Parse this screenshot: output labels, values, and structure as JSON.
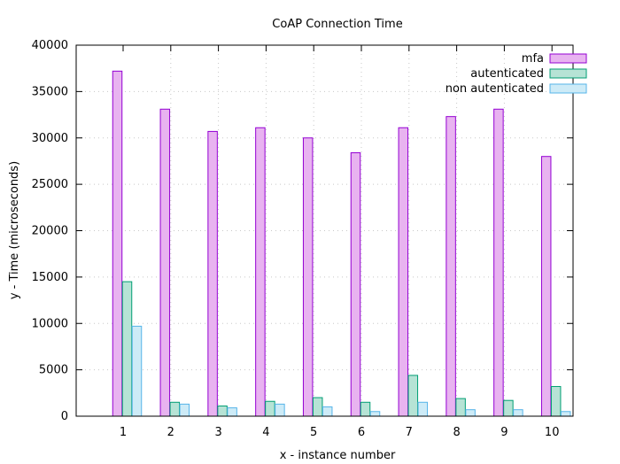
{
  "chart_data": {
    "type": "bar",
    "title": "CoAP Connection Time",
    "xlabel": "x - instance number",
    "ylabel": "y - Time (microseconds)",
    "categories": [
      "1",
      "2",
      "3",
      "4",
      "5",
      "6",
      "7",
      "8",
      "9",
      "10"
    ],
    "series": [
      {
        "name": "mfa",
        "values": [
          37200,
          33100,
          30700,
          31100,
          30000,
          28400,
          31100,
          32300,
          33100,
          28000
        ],
        "fill": "#e8b3f0",
        "stroke": "#9400d3"
      },
      {
        "name": "autenticated",
        "values": [
          14500,
          1500,
          1100,
          1600,
          2000,
          1500,
          4400,
          1900,
          1700,
          3200
        ],
        "fill": "#b6e3d5",
        "stroke": "#009e73"
      },
      {
        "name": "non autenticated",
        "values": [
          9700,
          1300,
          900,
          1300,
          1000,
          500,
          1500,
          700,
          700,
          500
        ],
        "fill": "#cdebf7",
        "stroke": "#56b4e9"
      }
    ],
    "yticks": [
      "0",
      "5000",
      "10000",
      "15000",
      "20000",
      "25000",
      "30000",
      "35000",
      "40000"
    ],
    "ylim": [
      0,
      40000
    ],
    "grid": true,
    "legend_position": "top-right"
  }
}
